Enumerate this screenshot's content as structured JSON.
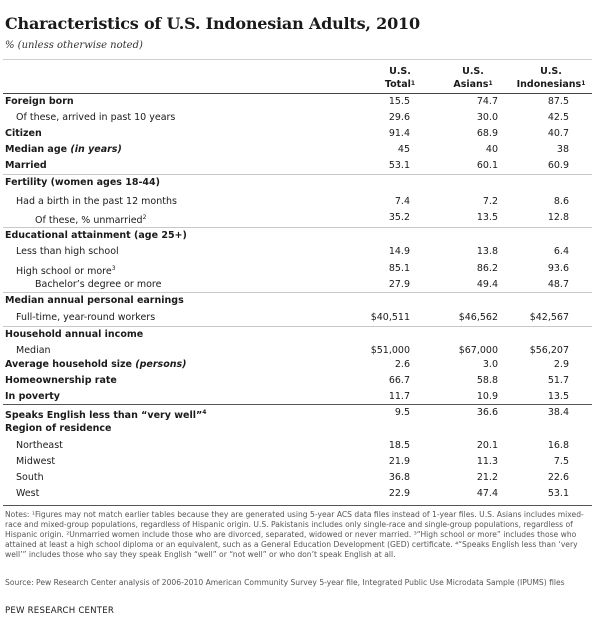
{
  "title": "Characteristics of U.S. Indonesian Adults, 2010",
  "subtitle": "% (unless otherwise noted)",
  "columns": [
    {
      "line1": "U.S.",
      "line2": "Total",
      "sup": "1"
    },
    {
      "line1": "U.S.",
      "line2": "Asians",
      "sup": "1"
    },
    {
      "line1": "U.S.",
      "line2": "Indonesians",
      "sup": "1"
    }
  ],
  "rows": [
    {
      "label": "Foreign born",
      "bold": true,
      "values": [
        "15.5",
        "74.7",
        "87.5"
      ]
    },
    {
      "label": "Of these, arrived in past 10 years",
      "indent": 1,
      "values": [
        "29.6",
        "30.0",
        "42.5"
      ]
    },
    {
      "label": "Citizen",
      "bold": true,
      "values": [
        "91.4",
        "68.9",
        "40.7"
      ]
    },
    {
      "label": "Median age",
      "label_italic": " (in years)",
      "bold": true,
      "values": [
        "45",
        "40",
        "38"
      ]
    },
    {
      "label": "Married",
      "bold": true,
      "values": [
        "53.1",
        "60.1",
        "60.9"
      ]
    },
    {
      "label": "Fertility (women ages 18-44)",
      "bold": true,
      "values": [
        "",
        "",
        ""
      ]
    },
    {
      "label": "Had a birth in the past 12 months",
      "indent": 1,
      "values": [
        "7.4",
        "7.2",
        "8.6"
      ]
    },
    {
      "label": "Of these, % unmarried",
      "sup": "2",
      "indent": 2,
      "values": [
        "35.2",
        "13.5",
        "12.8"
      ]
    },
    {
      "label": "Educational attainment (age 25+)",
      "bold": true,
      "values": [
        "",
        "",
        ""
      ]
    },
    {
      "label": "Less than high school",
      "indent": 1,
      "values": [
        "14.9",
        "13.8",
        "6.4"
      ]
    },
    {
      "label": "High school or more",
      "sup": "3",
      "indent": 1,
      "values": [
        "85.1",
        "86.2",
        "93.6"
      ]
    },
    {
      "label": "Bachelor’s degree or more",
      "indent": 2,
      "values": [
        "27.9",
        "49.4",
        "48.7"
      ]
    },
    {
      "label": "Median annual personal earnings",
      "bold": true,
      "values": [
        "",
        "",
        ""
      ]
    },
    {
      "label": "Full-time, year-round workers",
      "indent": 1,
      "values": [
        "$40,511",
        "$46,562",
        "$42,567"
      ]
    },
    {
      "label": "Household annual income",
      "bold": true,
      "values": [
        "",
        "",
        ""
      ]
    },
    {
      "label": "Median",
      "indent": 1,
      "values": [
        "$51,000",
        "$67,000",
        "$56,207"
      ]
    },
    {
      "label": "Average household size",
      "label_italic": " (persons)",
      "bold": true,
      "values": [
        "2.6",
        "3.0",
        "2.9"
      ]
    },
    {
      "label": "Homeownership rate",
      "bold": true,
      "values": [
        "66.7",
        "58.8",
        "51.7"
      ]
    },
    {
      "label": "In poverty",
      "bold": true,
      "values": [
        "11.7",
        "10.9",
        "13.5"
      ]
    },
    {
      "label": "Speaks English less than “very well”",
      "sup": "4",
      "bold": true,
      "values": [
        "9.5",
        "36.6",
        "38.4"
      ]
    },
    {
      "label": "Region of residence",
      "bold": true,
      "values": [
        "",
        "",
        ""
      ]
    },
    {
      "label": "Northeast",
      "indent": 1,
      "values": [
        "18.5",
        "20.1",
        "16.8"
      ]
    },
    {
      "label": "Midwest",
      "indent": 1,
      "values": [
        "21.9",
        "11.3",
        "7.5"
      ]
    },
    {
      "label": "South",
      "indent": 1,
      "values": [
        "36.8",
        "21.2",
        "22.6"
      ]
    },
    {
      "label": "West",
      "indent": 1,
      "values": [
        "22.9",
        "47.4",
        "53.1"
      ]
    }
  ],
  "notes": "Notes: ¹Figures may not match earlier tables because they are generated using 5-year ACS data files instead of 1-year files.  U.S. Asians includes mixed-race and mixed-group populations, regardless of Hispanic origin. U.S. Pakistanis includes only single-race and single-group populations, regardless of Hispanic origin. ²Unmarried women include those who are divorced, separated, widowed or never married. ³“High school or more” includes those who attained at least a high school diploma or an equivalent, such as a General Education Development (GED) certificate. ⁴“Speaks English less than ‘very well’” includes those who say they speak English “well” or “not well” or who don’t speak English at all.",
  "source": "Source: Pew Research Center analysis of 2006-2010 American Community Survey 5-year file, Integrated Public Use Microdata Sample (IPUMS) files",
  "org": "PEW RESEARCH CENTER"
}
